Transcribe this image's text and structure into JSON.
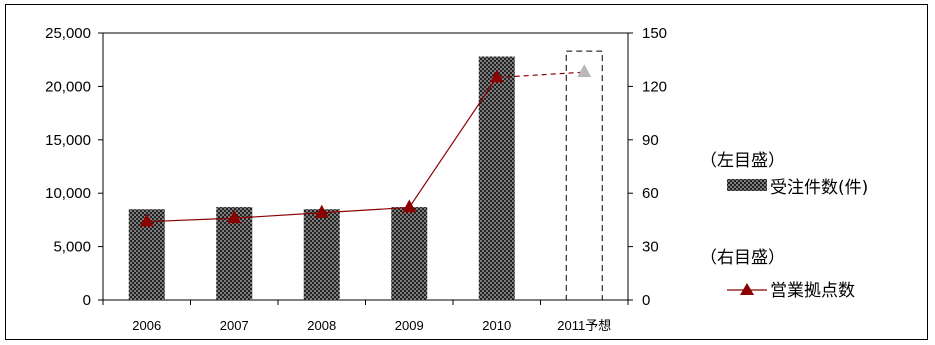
{
  "chart_data": {
    "type": "bar",
    "categories": [
      "2006",
      "2007",
      "2008",
      "2009",
      "2010",
      "2011予想"
    ],
    "series": [
      {
        "values": [
          8500,
          8700,
          8500,
          8700,
          22800,
          null
        ],
        "axis": "left"
      },
      {
        "values": [
          44,
          46,
          49,
          52,
          125,
          128
        ],
        "axis": "right"
      }
    ],
    "forecast": {
      "category": "2011予想",
      "bar_outline_value": 23300
    },
    "left_axis": {
      "ylim": [
        0,
        25000
      ],
      "ticks": [
        "0",
        "5,000",
        "10,000",
        "15,000",
        "20,000",
        "25,000"
      ]
    },
    "right_axis": {
      "ylim": [
        0,
        150
      ],
      "ticks": [
        "0",
        "30",
        "60",
        "90",
        "120",
        "150"
      ]
    },
    "legend": {
      "left_header": "（左目盛）",
      "bar_label": "受注件数(件)",
      "right_header": "（右目盛）",
      "line_label": "営業拠点数"
    },
    "colors": {
      "bar": "#1a1a1a",
      "line": "#8b0000",
      "marker": "#8b0000",
      "forecast_marker": "#b8b8b8"
    },
    "grid": false
  }
}
